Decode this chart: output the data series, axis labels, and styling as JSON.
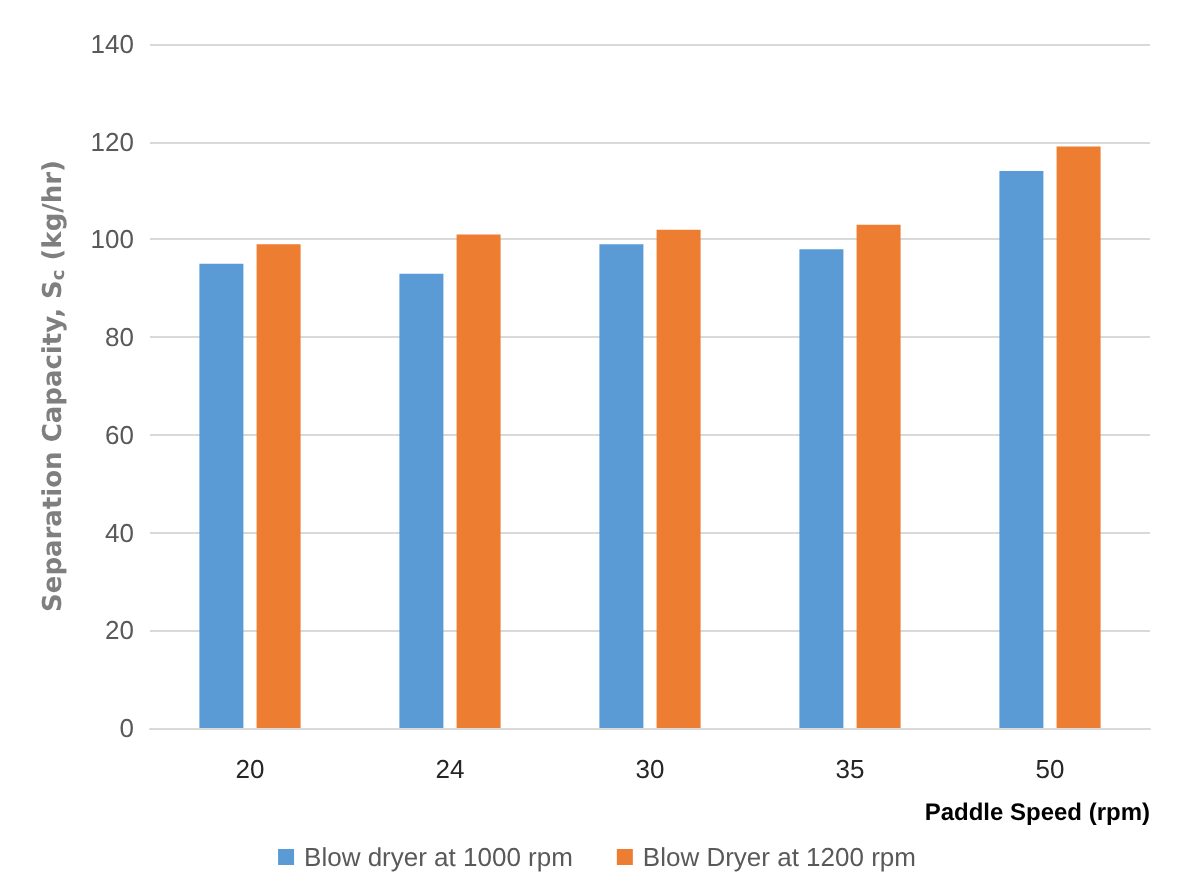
{
  "chart_data": {
    "type": "bar",
    "xlabel": "Paddle Speed (rpm)",
    "ylabel": "Separation Capacity, S$_{c}$ (kg/hr)",
    "categories": [
      "20",
      "24",
      "30",
      "35",
      "50"
    ],
    "series": [
      {
        "name": "Blow dryer at 1000 rpm",
        "color": "#5b9bd5",
        "values": [
          95,
          93,
          99,
          98,
          114
        ]
      },
      {
        "name": "Blow Dryer at 1200 rpm",
        "color": "#ed7d31",
        "values": [
          99,
          101,
          102,
          103,
          119
        ]
      }
    ],
    "ylim": [
      0,
      140
    ],
    "yticks": [
      0,
      20,
      40,
      60,
      80,
      100,
      120,
      140
    ],
    "grid": "y",
    "legend": "bottom"
  }
}
